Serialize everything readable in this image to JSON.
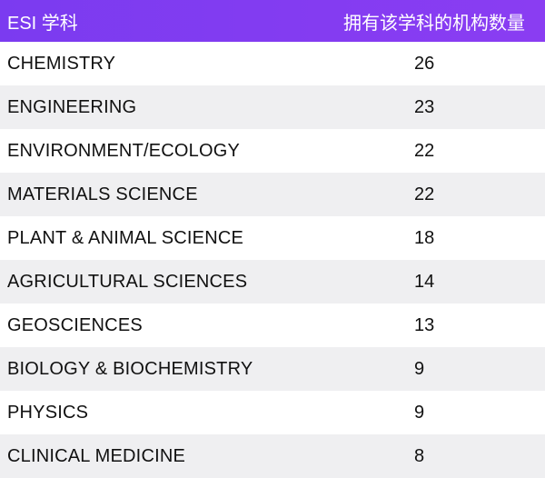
{
  "table": {
    "headers": {
      "subject": "ESI 学科",
      "count": "拥有该学科的机构数量"
    },
    "rows": [
      {
        "subject": "CHEMISTRY",
        "count": "26"
      },
      {
        "subject": "ENGINEERING",
        "count": "23"
      },
      {
        "subject": "ENVIRONMENT/ECOLOGY",
        "count": "22"
      },
      {
        "subject": "MATERIALS SCIENCE",
        "count": "22"
      },
      {
        "subject": "PLANT & ANIMAL SCIENCE",
        "count": "18"
      },
      {
        "subject": "AGRICULTURAL SCIENCES",
        "count": "14"
      },
      {
        "subject": "GEOSCIENCES",
        "count": "13"
      },
      {
        "subject": "BIOLOGY & BIOCHEMISTRY",
        "count": "9"
      },
      {
        "subject": "PHYSICS",
        "count": "9"
      },
      {
        "subject": "CLINICAL MEDICINE",
        "count": "8"
      }
    ],
    "colors": {
      "header_background": "#7b3bf0",
      "header_text": "#ffffff",
      "row_alt_background": "#efeff1",
      "row_background": "#ffffff"
    }
  }
}
